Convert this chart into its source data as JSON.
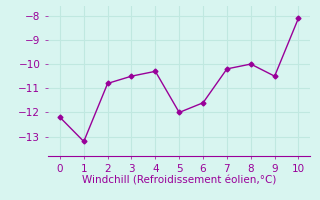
{
  "x": [
    0,
    1,
    2,
    3,
    4,
    5,
    6,
    7,
    8,
    9,
    10
  ],
  "y": [
    -12.2,
    -13.2,
    -10.8,
    -10.5,
    -10.3,
    -12.0,
    -11.6,
    -10.2,
    -10.0,
    -10.5,
    -8.1
  ],
  "line_color": "#990099",
  "marker": "D",
  "marker_size": 2.5,
  "line_width": 1.0,
  "xlabel": "Windchill (Refroidissement éolien,°C)",
  "xlabel_color": "#990099",
  "xlabel_fontsize": 7.5,
  "xlim": [
    -0.5,
    10.5
  ],
  "ylim": [
    -13.8,
    -7.6
  ],
  "yticks": [
    -13,
    -12,
    -11,
    -10,
    -9,
    -8
  ],
  "xticks": [
    0,
    1,
    2,
    3,
    4,
    5,
    6,
    7,
    8,
    9,
    10
  ],
  "background_color": "#d8f5f0",
  "grid_color": "#c0e8e0",
  "tick_fontsize": 7.5,
  "tick_label_color": "#990099"
}
